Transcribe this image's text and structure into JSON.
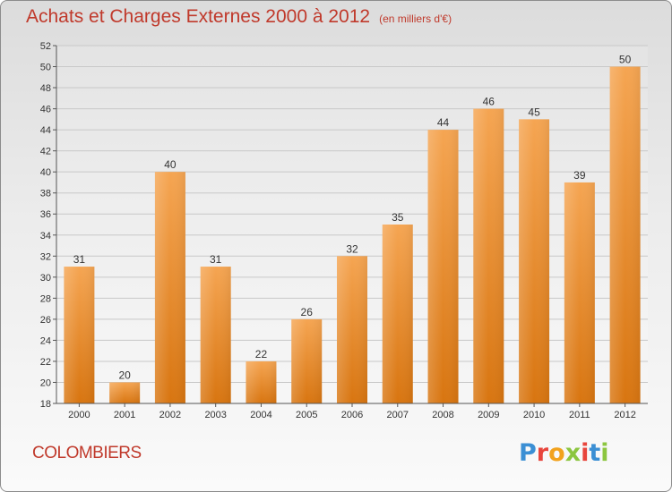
{
  "header": {
    "title": "Achats et Charges Externes 2000 à 2012",
    "subtitle": "(en milliers d'€)"
  },
  "footer": {
    "commune": "COLOMBIERS",
    "brand_letters": [
      "P",
      "r",
      "o",
      "x",
      "i",
      "t",
      "i"
    ],
    "brand_colors": [
      "#3b8fd4",
      "#e8453c",
      "#f2a21d",
      "#8cc63f",
      "#e8453c",
      "#3b8fd4",
      "#8cc63f"
    ]
  },
  "chart_data": {
    "type": "bar",
    "title": "Achats et Charges Externes 2000 à 2012",
    "subtitle": "(en milliers d'€)",
    "categories": [
      "2000",
      "2001",
      "2002",
      "2003",
      "2004",
      "2005",
      "2006",
      "2007",
      "2008",
      "2009",
      "2010",
      "2011",
      "2012"
    ],
    "values": [
      31,
      20,
      40,
      31,
      22,
      26,
      32,
      35,
      44,
      46,
      45,
      39,
      50
    ],
    "ylim": [
      18,
      52
    ],
    "yticks": [
      18,
      20,
      22,
      24,
      26,
      28,
      30,
      32,
      34,
      36,
      38,
      40,
      42,
      44,
      46,
      48,
      50,
      52
    ],
    "grid": true,
    "bar_color_top": "#f5a552",
    "bar_color_bottom": "#d87510",
    "axis_color": "#555555"
  }
}
